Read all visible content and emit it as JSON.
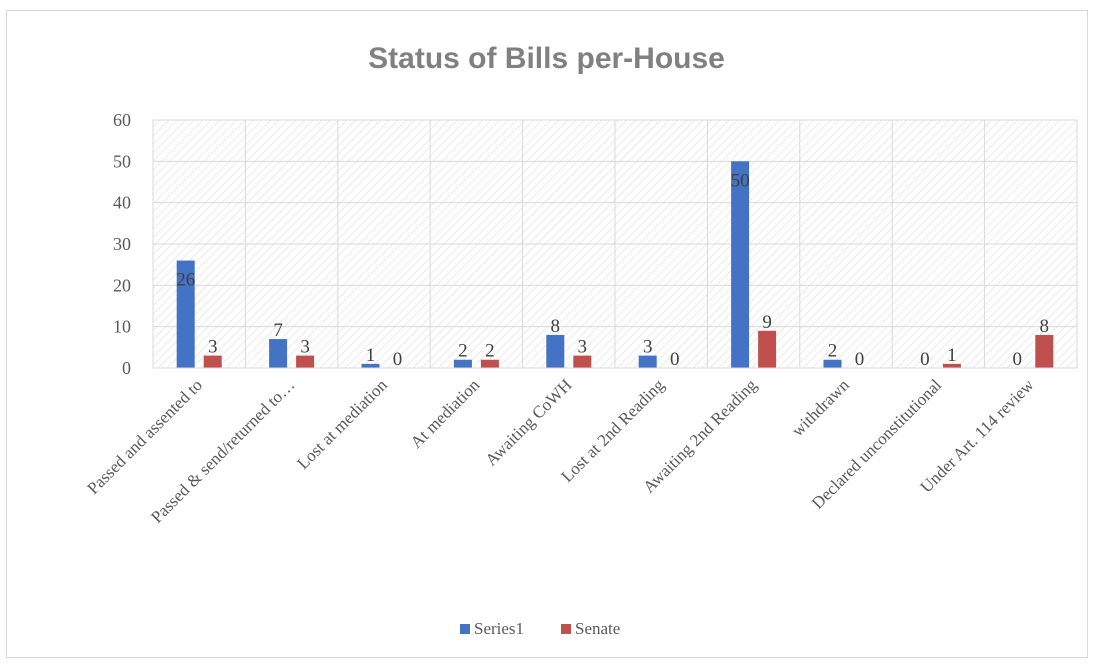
{
  "chart_data": {
    "type": "bar",
    "title": "Status of Bills per-House",
    "categories": [
      "Passed and assented to",
      "Passed & send/returned to…",
      "Lost at mediation",
      "At mediation",
      "Awaiting CoWH",
      "Lost at 2nd Reading",
      "Awaiting 2nd Reading",
      "withdrawn",
      "Declared unconstitutional",
      "Under Art. 114 review"
    ],
    "series": [
      {
        "name": "Series1",
        "color": "#4472c4",
        "values": [
          26,
          7,
          1,
          2,
          8,
          3,
          50,
          2,
          0,
          0
        ]
      },
      {
        "name": "Senate",
        "color": "#c0504d",
        "values": [
          3,
          3,
          0,
          2,
          3,
          0,
          9,
          0,
          1,
          8
        ]
      }
    ],
    "ylim": [
      0,
      60
    ],
    "yticks": [
      0,
      10,
      20,
      30,
      40,
      50,
      60
    ],
    "grid": true,
    "legend": "bottom"
  }
}
